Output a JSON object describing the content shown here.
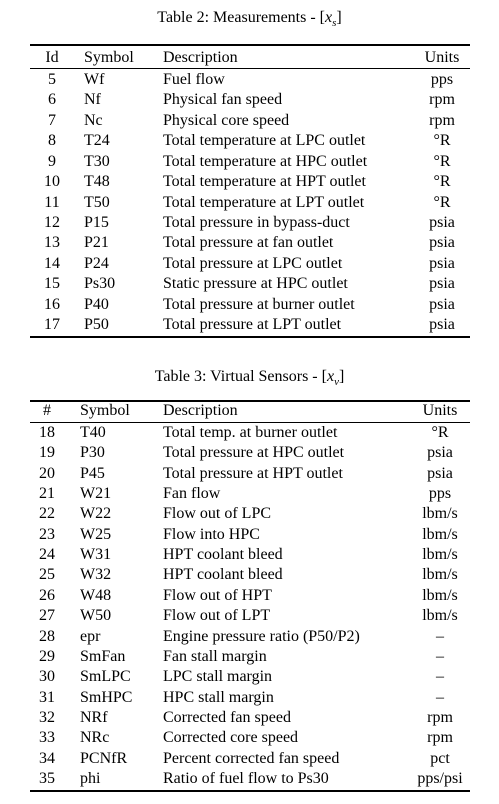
{
  "tables": [
    {
      "title": {
        "prefix": "Table 2: Measurements - [",
        "symbol": "x",
        "subscript": "s",
        "suffix": "]"
      },
      "header": [
        "Id",
        "Symbol",
        "Description",
        "Units"
      ],
      "rows": [
        [
          "5",
          "Wf",
          "Fuel flow",
          "pps"
        ],
        [
          "6",
          "Nf",
          "Physical fan speed",
          "rpm"
        ],
        [
          "7",
          "Nc",
          "Physical core speed",
          "rpm"
        ],
        [
          "8",
          "T24",
          "Total temperature at LPC outlet",
          "°R"
        ],
        [
          "9",
          "T30",
          "Total temperature at HPC outlet",
          "°R"
        ],
        [
          "10",
          "T48",
          "Total temperature at HPT outlet",
          "°R"
        ],
        [
          "11",
          "T50",
          "Total temperature at LPT outlet",
          "°R"
        ],
        [
          "12",
          "P15",
          "Total pressure in bypass-duct",
          "psia"
        ],
        [
          "13",
          "P21",
          "Total pressure at fan outlet",
          "psia"
        ],
        [
          "14",
          "P24",
          "Total pressure at LPC outlet",
          "psia"
        ],
        [
          "15",
          "Ps30",
          "Static pressure at HPC outlet",
          "psia"
        ],
        [
          "16",
          "P40",
          "Total pressure at burner outlet",
          "psia"
        ],
        [
          "17",
          "P50",
          "Total pressure at LPT outlet",
          "psia"
        ]
      ]
    },
    {
      "title": {
        "prefix": "Table 3: Virtual Sensors - [",
        "symbol": "x",
        "subscript": "v",
        "suffix": "]"
      },
      "header": [
        "#",
        "Symbol",
        "Description",
        "Units"
      ],
      "rows": [
        [
          "18",
          "T40",
          "Total temp. at burner outlet",
          "°R"
        ],
        [
          "19",
          "P30",
          "Total pressure at HPC outlet",
          "psia"
        ],
        [
          "20",
          "P45",
          "Total pressure at HPT outlet",
          "psia"
        ],
        [
          "21",
          "W21",
          "Fan flow",
          "pps"
        ],
        [
          "22",
          "W22",
          "Flow out of LPC",
          "lbm/s"
        ],
        [
          "23",
          "W25",
          "Flow into HPC",
          "lbm/s"
        ],
        [
          "24",
          "W31",
          "HPT coolant bleed",
          "lbm/s"
        ],
        [
          "25",
          "W32",
          "HPT coolant bleed",
          "lbm/s"
        ],
        [
          "26",
          "W48",
          "Flow out of HPT",
          "lbm/s"
        ],
        [
          "27",
          "W50",
          "Flow out of LPT",
          "lbm/s"
        ],
        [
          "28",
          "epr",
          "Engine pressure ratio (P50/P2)",
          "–"
        ],
        [
          "29",
          "SmFan",
          "Fan stall margin",
          "–"
        ],
        [
          "30",
          "SmLPC",
          "LPC stall margin",
          "–"
        ],
        [
          "31",
          "SmHPC",
          "HPC stall margin",
          "–"
        ],
        [
          "32",
          "NRf",
          "Corrected fan speed",
          "rpm"
        ],
        [
          "33",
          "NRc",
          "Corrected core speed",
          "rpm"
        ],
        [
          "34",
          "PCNfR",
          "Percent corrected fan speed",
          "pct"
        ],
        [
          "35",
          "phi",
          "Ratio of fuel flow to Ps30",
          "pps/psi"
        ]
      ]
    }
  ]
}
